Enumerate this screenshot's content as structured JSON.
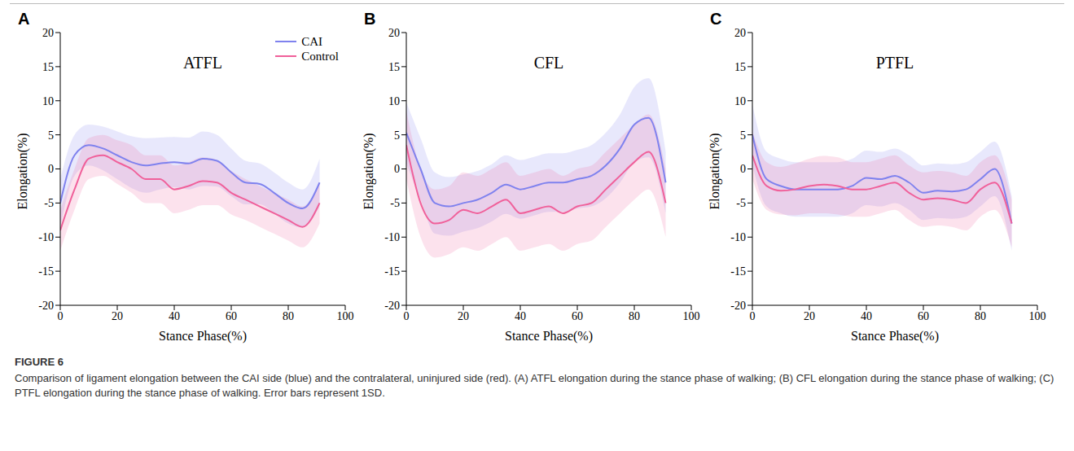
{
  "chart_data": [
    {
      "panel": "A",
      "type": "line",
      "title": "ATFL",
      "x_label": "Stance Phase(%)",
      "y_label": "Elongation(%)",
      "x": [
        0,
        5,
        10,
        15,
        20,
        25,
        30,
        35,
        40,
        45,
        50,
        55,
        60,
        65,
        70,
        75,
        80,
        85,
        91
      ],
      "xlim": [
        0,
        100
      ],
      "xticks": [
        0,
        20,
        40,
        60,
        80,
        100
      ],
      "ylim": [
        -20,
        20
      ],
      "yticks": [
        -20,
        -15,
        -10,
        -5,
        0,
        5,
        10,
        15,
        20
      ],
      "legend": "upper right",
      "series": [
        {
          "name": "CAI",
          "color": "#7f82ee",
          "values": [
            -5,
            2,
            3.5,
            3,
            2,
            1,
            0.5,
            0.8,
            1,
            0.8,
            1.5,
            1.2,
            -0.5,
            -2,
            -2.2,
            -3.5,
            -5,
            -5.8,
            -2
          ],
          "sd": [
            3.5,
            3,
            3,
            3.2,
            3.5,
            3.8,
            4,
            3.8,
            3.7,
            3.8,
            4,
            3.8,
            3.5,
            3.2,
            3,
            3,
            3,
            2.8,
            3.5
          ]
        },
        {
          "name": "Control",
          "color": "#f0609a",
          "values": [
            -9,
            -3,
            1.5,
            2,
            1,
            0,
            -1.5,
            -1.5,
            -3,
            -2.5,
            -1.8,
            -2,
            -3.5,
            -4.5,
            -5.5,
            -6.5,
            -7.5,
            -8.5,
            -5
          ],
          "sd": [
            3,
            3,
            3,
            3,
            3.2,
            3.5,
            3.5,
            3.5,
            3.5,
            3.5,
            3.5,
            3.3,
            3.2,
            3,
            3,
            3,
            3,
            3,
            3
          ]
        }
      ]
    },
    {
      "panel": "B",
      "type": "line",
      "title": "CFL",
      "x_label": "Stance Phase(%)",
      "y_label": "Elongation(%)",
      "x": [
        0,
        5,
        10,
        15,
        20,
        25,
        30,
        35,
        40,
        45,
        50,
        55,
        60,
        65,
        70,
        75,
        80,
        85,
        91
      ],
      "xlim": [
        0,
        100
      ],
      "xticks": [
        0,
        20,
        40,
        60,
        80,
        100
      ],
      "ylim": [
        -20,
        20
      ],
      "yticks": [
        -20,
        -15,
        -10,
        -5,
        0,
        5,
        10,
        15,
        20
      ],
      "series": [
        {
          "name": "CAI",
          "color": "#7f82ee",
          "values": [
            5.3,
            0,
            -5,
            -5.5,
            -5,
            -4.5,
            -3.5,
            -2.3,
            -3,
            -2.5,
            -2,
            -2,
            -1.5,
            -1,
            0.5,
            3,
            6.5,
            7.5,
            -2
          ],
          "sd": [
            4.5,
            4.5,
            4.5,
            4.3,
            4.2,
            4.2,
            4.2,
            4.3,
            4.3,
            4.3,
            4.3,
            4.3,
            4.3,
            4.5,
            4.8,
            5,
            5.5,
            5.8,
            4.5
          ]
        },
        {
          "name": "Control",
          "color": "#f0609a",
          "values": [
            3.5,
            -5,
            -8,
            -7.5,
            -6,
            -6.5,
            -5.5,
            -4.5,
            -6.5,
            -6,
            -5.5,
            -6.5,
            -5.5,
            -5,
            -3,
            -1,
            1,
            2.5,
            -5
          ],
          "sd": [
            5,
            5,
            5,
            5,
            5.5,
            5.5,
            5.5,
            5.5,
            5.5,
            5.5,
            5.5,
            5.5,
            5.5,
            5.5,
            5.5,
            5.5,
            5.5,
            5.5,
            5
          ]
        }
      ]
    },
    {
      "panel": "C",
      "type": "line",
      "title": "PTFL",
      "x_label": "Stance Phase(%)",
      "y_label": "Elongation(%)",
      "x": [
        0,
        5,
        10,
        15,
        20,
        25,
        30,
        35,
        40,
        45,
        50,
        55,
        60,
        65,
        70,
        75,
        80,
        85,
        91
      ],
      "xlim": [
        0,
        100
      ],
      "xticks": [
        0,
        20,
        40,
        60,
        80,
        100
      ],
      "ylim": [
        -20,
        20
      ],
      "yticks": [
        -20,
        -15,
        -10,
        -5,
        0,
        5,
        10,
        15,
        20
      ],
      "series": [
        {
          "name": "CAI",
          "color": "#7f82ee",
          "values": [
            5,
            -1.5,
            -2.5,
            -3,
            -3,
            -3,
            -3,
            -2.5,
            -1.3,
            -1.5,
            -1,
            -2,
            -3.5,
            -3.2,
            -3.3,
            -3,
            -1.5,
            0,
            -8
          ],
          "sd": [
            4.5,
            4,
            4,
            4,
            4,
            4,
            4,
            4,
            4,
            4,
            4,
            4,
            4,
            4,
            4,
            4,
            4,
            4,
            4
          ]
        },
        {
          "name": "Control",
          "color": "#f0609a",
          "values": [
            2,
            -2.5,
            -3.2,
            -3,
            -2.5,
            -2.3,
            -2.5,
            -3,
            -3,
            -2.5,
            -2,
            -3.5,
            -4.5,
            -4.3,
            -4.5,
            -5,
            -3,
            -2,
            -8
          ],
          "sd": [
            3.5,
            3.5,
            3.5,
            3.8,
            4,
            4.2,
            4.2,
            4,
            4,
            4,
            4,
            4,
            4,
            4,
            4,
            4,
            4,
            4,
            3.5
          ]
        }
      ]
    }
  ],
  "caption": {
    "label": "FIGURE 6",
    "text": "Comparison of ligament elongation between the CAI side (blue) and the contralateral, uninjured side (red). (A) ATFL elongation during the stance phase of walking; (B) CFL elongation during the stance phase of walking; (C) PTFL elongation during the stance phase of walking. Error bars represent 1SD."
  }
}
